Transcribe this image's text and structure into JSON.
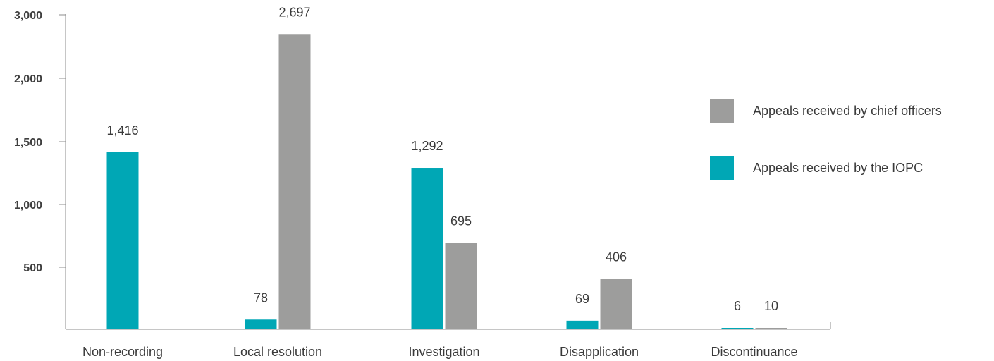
{
  "chart_data": {
    "type": "bar",
    "categories": [
      "Non-recording",
      "Local resolution",
      "Investigation",
      "Disapplication",
      "Discontinuance"
    ],
    "series": [
      {
        "name": "Appeals received by the IOPC",
        "color": "#00a7b5",
        "values": [
          1416,
          78,
          1292,
          69,
          6
        ]
      },
      {
        "name": "Appeals received by chief officers",
        "color": "#9d9d9c",
        "values": [
          null,
          2697,
          695,
          406,
          10
        ]
      }
    ],
    "y_ticks": [
      500,
      1000,
      1500,
      2000,
      3000
    ],
    "y_tick_labels": [
      "500",
      "1,000",
      "1,500",
      "2,000",
      "3,000"
    ],
    "data_labels": [
      [
        "1,416",
        "78",
        "1,292",
        "69",
        "6"
      ],
      [
        "",
        "2,697",
        "695",
        "406",
        "10"
      ]
    ],
    "ylim": [
      0,
      3000
    ],
    "grid": false,
    "legend_position": "right",
    "legend_order": [
      1,
      0
    ]
  }
}
